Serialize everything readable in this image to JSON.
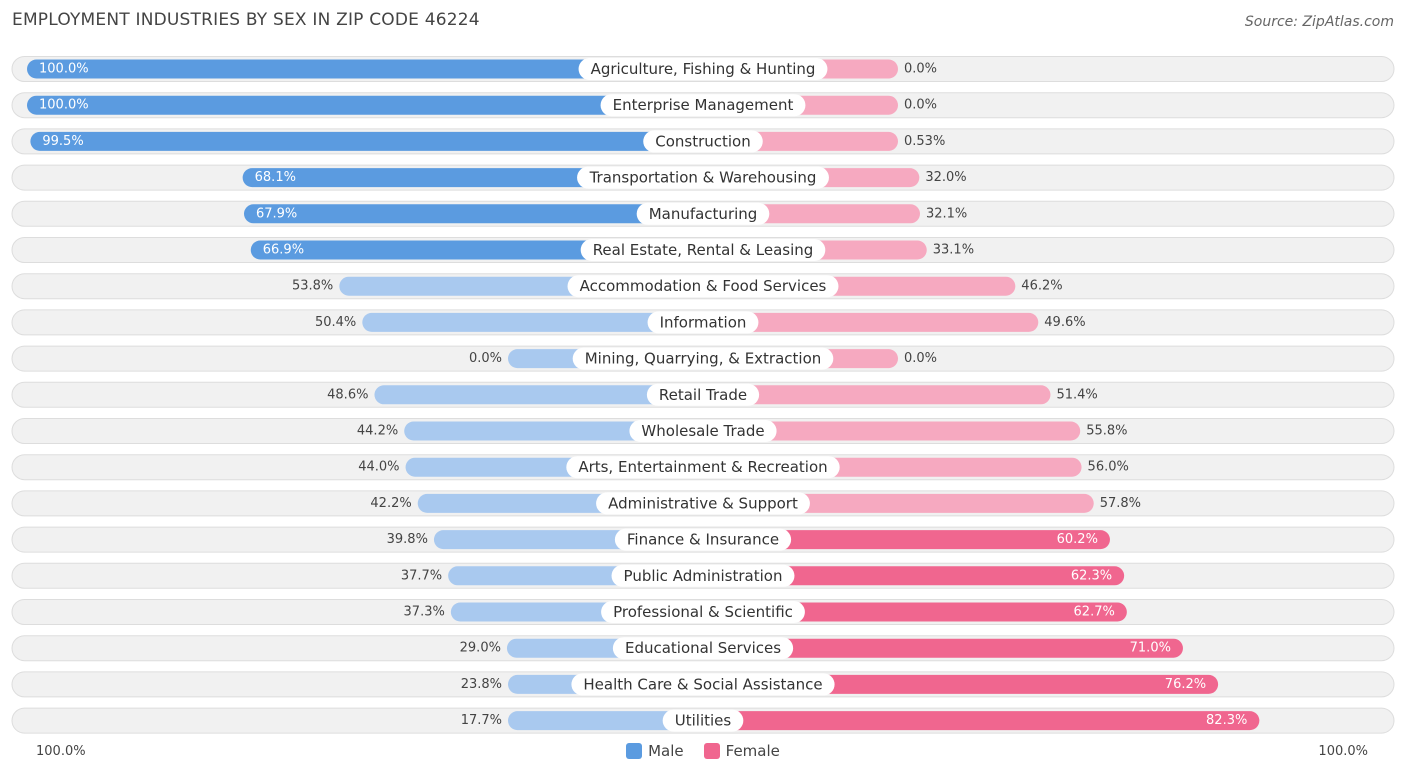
{
  "title": "EMPLOYMENT INDUSTRIES BY SEX IN ZIP CODE 46224",
  "source": "Source: ZipAtlas.com",
  "axis": {
    "left_label": "100.0%",
    "right_label": "100.0%"
  },
  "legend": {
    "male": "Male",
    "female": "Female"
  },
  "colors": {
    "male_dark": "#5b9be0",
    "male_light": "#a9c9ef",
    "female_dark": "#f0668f",
    "female_light": "#f6a9c0",
    "row_bg": "#f1f1f1",
    "row_border": "#dddddd"
  },
  "chart_data": {
    "type": "bar",
    "orientation": "diverging-horizontal",
    "title": "EMPLOYMENT INDUSTRIES BY SEX IN ZIP CODE 46224",
    "xlim": [
      -100,
      100
    ],
    "categories": [
      "Agriculture, Fishing & Hunting",
      "Enterprise Management",
      "Construction",
      "Transportation & Warehousing",
      "Manufacturing",
      "Real Estate, Rental & Leasing",
      "Accommodation & Food Services",
      "Information",
      "Mining, Quarrying, & Extraction",
      "Retail Trade",
      "Wholesale Trade",
      "Arts, Entertainment & Recreation",
      "Administrative & Support",
      "Finance & Insurance",
      "Public Administration",
      "Professional & Scientific",
      "Educational Services",
      "Health Care & Social Assistance",
      "Utilities"
    ],
    "series": [
      {
        "name": "Male",
        "values": [
          100.0,
          100.0,
          99.5,
          68.1,
          67.9,
          66.9,
          53.8,
          50.4,
          0.0,
          48.6,
          44.2,
          44.0,
          42.2,
          39.8,
          37.7,
          37.3,
          29.0,
          23.8,
          17.7
        ],
        "labels": [
          "100.0%",
          "100.0%",
          "99.5%",
          "68.1%",
          "67.9%",
          "66.9%",
          "53.8%",
          "50.4%",
          "0.0%",
          "48.6%",
          "44.2%",
          "44.0%",
          "42.2%",
          "39.8%",
          "37.7%",
          "37.3%",
          "29.0%",
          "23.8%",
          "17.7%"
        ]
      },
      {
        "name": "Female",
        "values": [
          0.0,
          0.0,
          0.53,
          32.0,
          32.1,
          33.1,
          46.2,
          49.6,
          0.0,
          51.4,
          55.8,
          56.0,
          57.8,
          60.2,
          62.3,
          62.7,
          71.0,
          76.2,
          82.3
        ],
        "labels": [
          "0.0%",
          "0.0%",
          "0.53%",
          "32.0%",
          "32.1%",
          "33.1%",
          "46.2%",
          "49.6%",
          "0.0%",
          "51.4%",
          "55.8%",
          "56.0%",
          "57.8%",
          "60.2%",
          "62.3%",
          "62.7%",
          "71.0%",
          "76.2%",
          "82.3%"
        ]
      }
    ]
  }
}
